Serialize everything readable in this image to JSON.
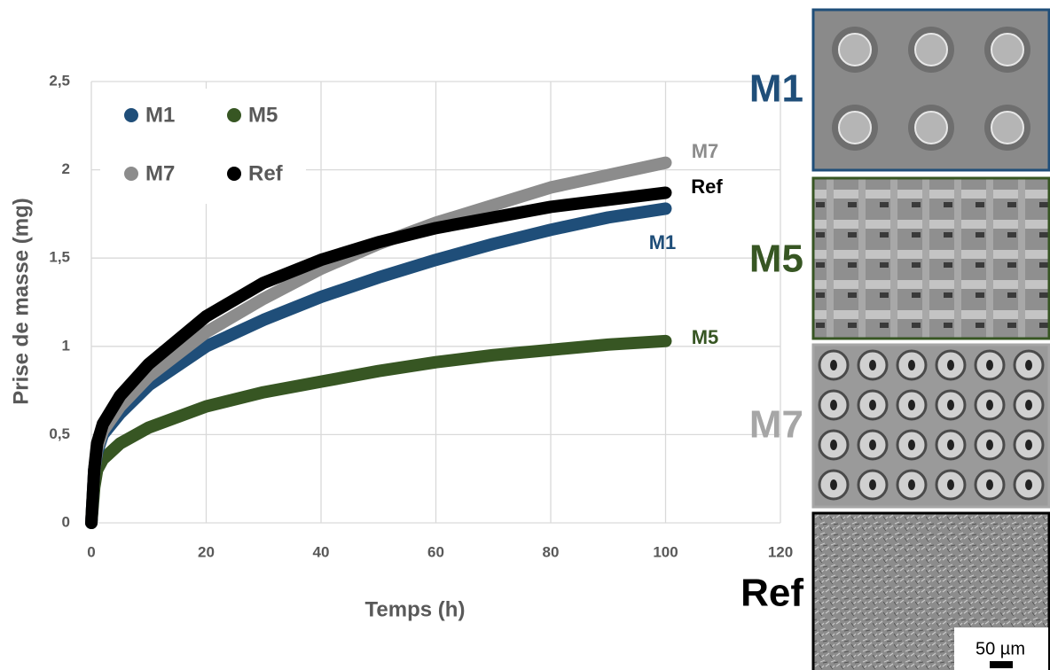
{
  "chart_data": {
    "type": "line",
    "x_label": "Temps (h)",
    "y_label": "Prise de masse (mg)",
    "x": [
      0,
      0.5,
      1,
      2,
      5,
      10,
      20,
      30,
      40,
      50,
      60,
      70,
      80,
      90,
      100
    ],
    "series": [
      {
        "name": "M1",
        "color": "#1f4e79",
        "values": [
          0,
          0.3,
          0.4,
          0.5,
          0.62,
          0.78,
          1.0,
          1.15,
          1.28,
          1.39,
          1.49,
          1.58,
          1.66,
          1.73,
          1.78
        ]
      },
      {
        "name": "M5",
        "color": "#375623",
        "values": [
          0,
          0.2,
          0.3,
          0.36,
          0.45,
          0.54,
          0.66,
          0.74,
          0.8,
          0.86,
          0.91,
          0.95,
          0.98,
          1.01,
          1.03
        ]
      },
      {
        "name": "M7",
        "color": "#8c8c8c",
        "values": [
          0,
          0.3,
          0.42,
          0.52,
          0.66,
          0.83,
          1.08,
          1.27,
          1.44,
          1.58,
          1.7,
          1.8,
          1.9,
          1.97,
          2.04
        ]
      },
      {
        "name": "Ref",
        "color": "#000000",
        "values": [
          0,
          0.3,
          0.45,
          0.56,
          0.72,
          0.9,
          1.17,
          1.36,
          1.49,
          1.59,
          1.67,
          1.73,
          1.79,
          1.83,
          1.87
        ]
      }
    ],
    "xlim": [
      0,
      120
    ],
    "xticks": [
      0,
      20,
      40,
      60,
      80,
      100,
      120
    ],
    "ylim": [
      0,
      2.5
    ],
    "yticks": [
      0,
      {
        "value": 0.5,
        "label": "0,5"
      },
      1,
      {
        "value": 1.5,
        "label": "1,5"
      },
      2,
      {
        "value": 2.5,
        "label": "2,5"
      }
    ],
    "grid": true,
    "legend": "upper-left"
  },
  "panels": {
    "scale_bar": "50 µm"
  }
}
